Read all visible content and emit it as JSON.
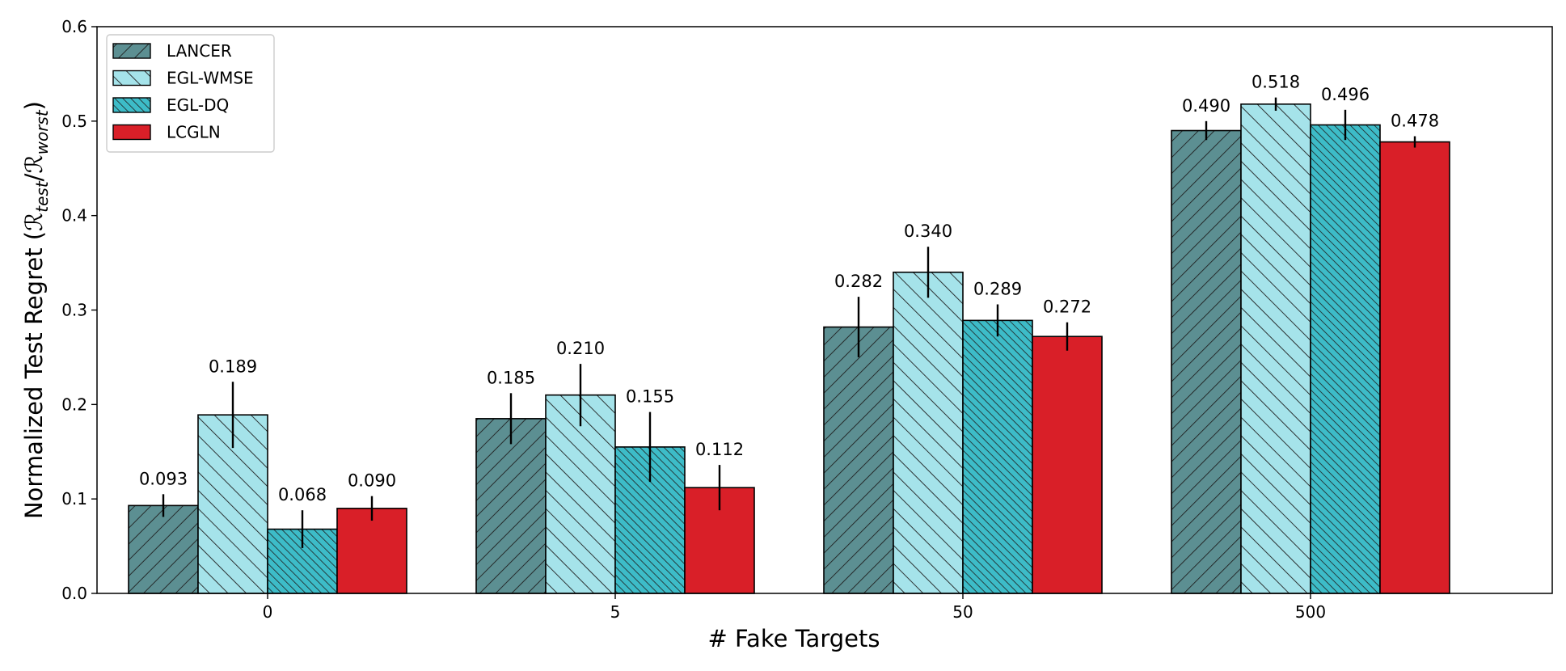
{
  "chart_data": {
    "type": "bar",
    "xlabel": "# Fake Targets",
    "ylabel": {
      "prefix": "Normalized Test Regret (",
      "num": "ℛ",
      "num_sub": "test",
      "sep": "/",
      "den": "ℛ",
      "den_sub": "worst",
      "suffix": ")"
    },
    "categories": [
      "0",
      "5",
      "50",
      "500"
    ],
    "ylim": [
      0,
      0.6
    ],
    "yticks": [
      "0.0",
      "0.1",
      "0.2",
      "0.3",
      "0.4",
      "0.5",
      "0.6"
    ],
    "grid": false,
    "legend_position": "top-left",
    "series": [
      {
        "name": "LANCER",
        "color": "#5c8f92",
        "hatch": "backslash",
        "values": [
          0.093,
          0.185,
          0.282,
          0.49
        ],
        "labels": [
          "0.093",
          "0.185",
          "0.282",
          "0.490"
        ],
        "errors": [
          0.012,
          0.027,
          0.032,
          0.01
        ]
      },
      {
        "name": "EGL-WMSE",
        "color": "#a5e3ea",
        "hatch": "slash",
        "values": [
          0.189,
          0.21,
          0.34,
          0.518
        ],
        "labels": [
          "0.189",
          "0.210",
          "0.340",
          "0.518"
        ],
        "errors": [
          0.035,
          0.033,
          0.027,
          0.007
        ]
      },
      {
        "name": "EGL-DQ",
        "color": "#3dbcc8",
        "hatch": "dense-slash",
        "values": [
          0.068,
          0.155,
          0.289,
          0.496
        ],
        "labels": [
          "0.068",
          "0.155",
          "0.289",
          "0.496"
        ],
        "errors": [
          0.02,
          0.037,
          0.017,
          0.016
        ]
      },
      {
        "name": "LCGLN",
        "color": "#d91f28",
        "hatch": "none",
        "values": [
          0.09,
          0.112,
          0.272,
          0.478
        ],
        "labels": [
          "0.090",
          "0.112",
          "0.272",
          "0.478"
        ],
        "errors": [
          0.013,
          0.024,
          0.015,
          0.006
        ]
      }
    ]
  }
}
